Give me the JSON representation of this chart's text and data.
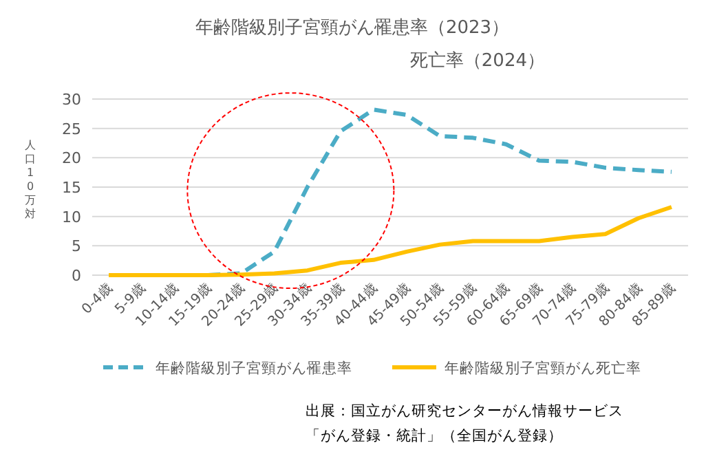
{
  "chart_data": {
    "type": "line",
    "title": "年齢階級別子宮頸がん罹患率（2023）",
    "subtitle": "死亡率（2024）",
    "ylabel": "人口10万対",
    "categories": [
      "0-4歳",
      "5-9歳",
      "10-14歳",
      "15-19歳",
      "20-24歳",
      "25-29歳",
      "30-34歳",
      "35-39歳",
      "40-44歳",
      "45-49歳",
      "50-54歳",
      "55-59歳",
      "60-64歳",
      "65-69歳",
      "70-74歳",
      "75-79歳",
      "80-84歳",
      "85-89歳"
    ],
    "series": [
      {
        "name": "年齢階級別子宮頸がん罹患率",
        "color": "#4bacc6",
        "line_style": "dashed",
        "values": [
          null,
          null,
          null,
          0,
          0.3,
          4,
          15,
          24.5,
          28.2,
          27.3,
          23.7,
          23.4,
          22.3,
          19.5,
          19.3,
          18.3,
          17.9,
          17.6
        ]
      },
      {
        "name": "年齢階級別子宮頸がん死亡率",
        "color": "#ffc000",
        "line_style": "solid",
        "values": [
          0,
          0,
          0,
          0,
          0.1,
          0.3,
          0.8,
          2.1,
          2.6,
          4,
          5.2,
          5.8,
          5.8,
          5.8,
          6.5,
          7,
          9.7,
          11.6
        ]
      }
    ],
    "ylim": [
      0,
      30
    ],
    "yticks": [
      0,
      5,
      10,
      15,
      20,
      25,
      30
    ],
    "grid": "y",
    "legend": "bottom",
    "annotations": [
      "出展：国立がん研究センターがん情報サービス",
      "「がん登録・統計」（全国がん登録）"
    ]
  }
}
